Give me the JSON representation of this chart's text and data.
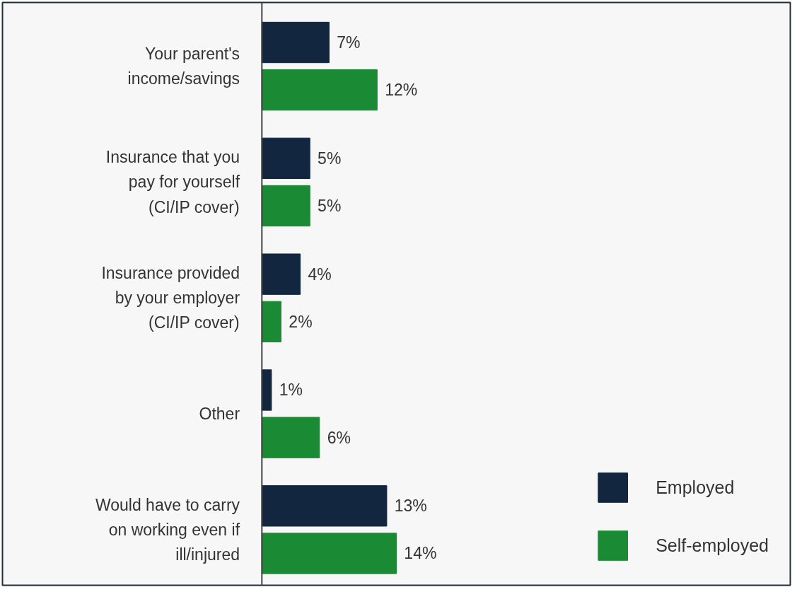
{
  "chart_data": {
    "type": "bar",
    "orientation": "horizontal",
    "categories": [
      "Your parent's income/savings",
      "Insurance that you pay for yourself (CI/IP cover)",
      "Insurance provided by your employer (CI/IP cover)",
      "Other",
      "Would have to carry on working even if ill/injured"
    ],
    "series": [
      {
        "name": "Employed",
        "color": "#12263f",
        "values": [
          7,
          5,
          4,
          1,
          13
        ],
        "value_labels": [
          "7%",
          "5%",
          "4%",
          "1%",
          "13%"
        ]
      },
      {
        "name": "Self-employed",
        "color": "#1b8a34",
        "values": [
          12,
          5,
          2,
          6,
          14
        ],
        "value_labels": [
          "12%",
          "5%",
          "2%",
          "6%",
          "14%"
        ]
      }
    ],
    "legend": "bottom right",
    "grid": false
  }
}
